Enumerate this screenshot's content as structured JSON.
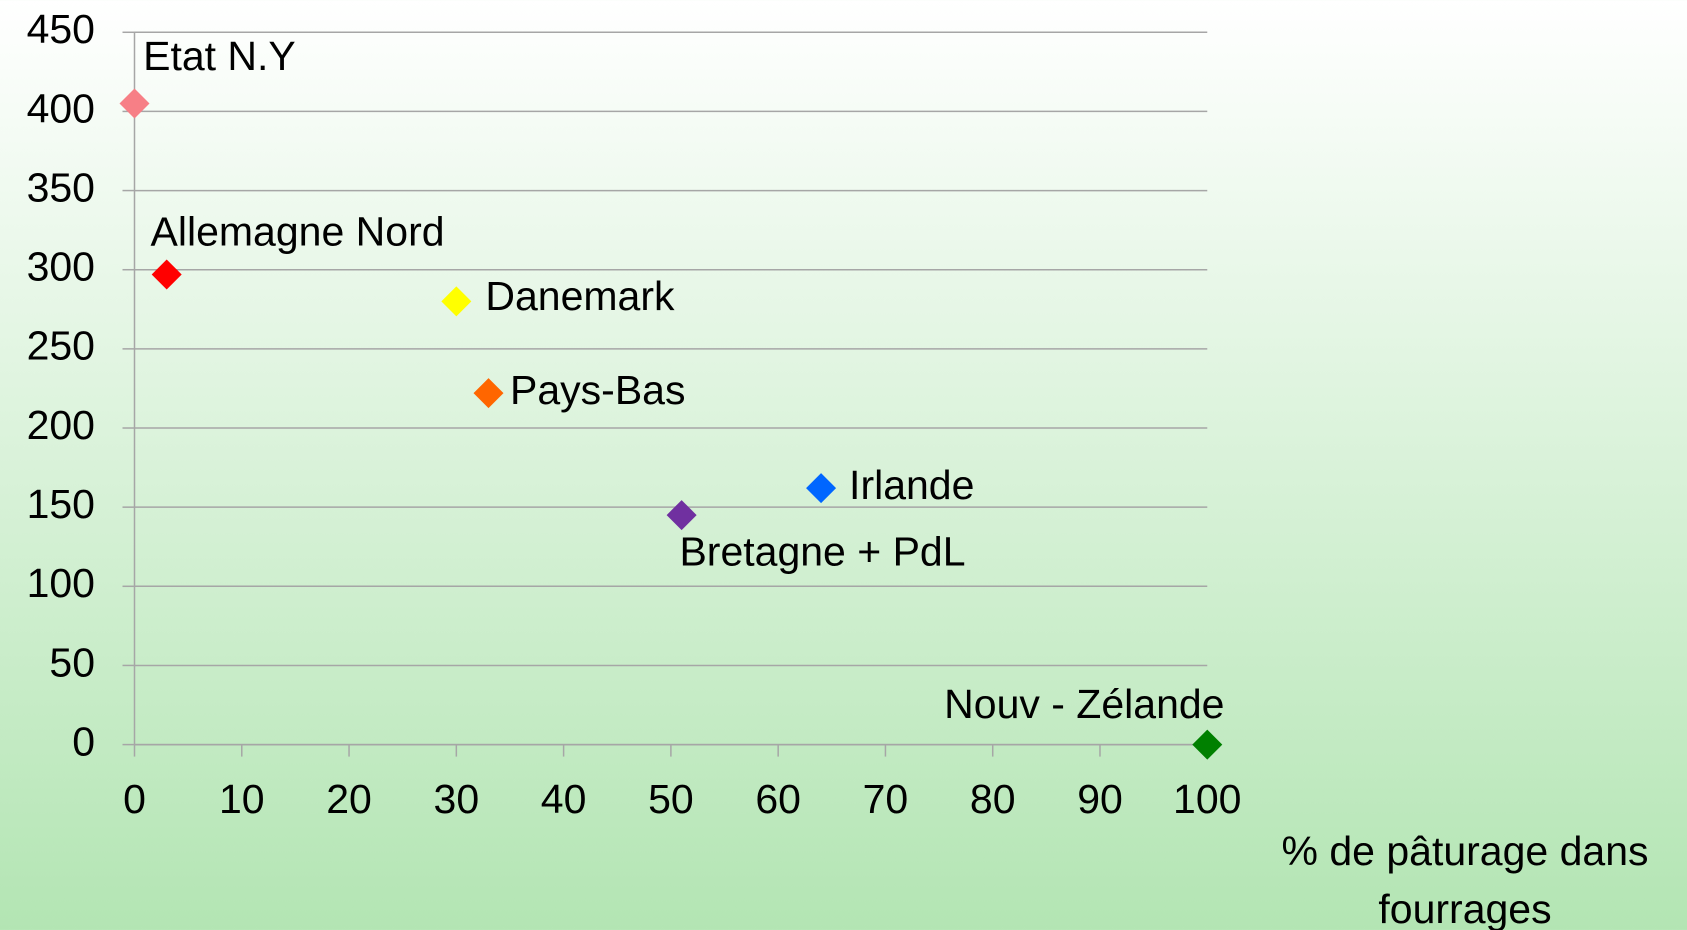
{
  "chart_data": {
    "type": "scatter",
    "xlabel": "% de pâturage dans fourrages",
    "xlim": [
      0,
      100
    ],
    "xticks": [
      0,
      10,
      20,
      30,
      40,
      50,
      60,
      70,
      80,
      90,
      100
    ],
    "ylim": [
      0,
      450
    ],
    "yticks": [
      0,
      50,
      100,
      150,
      200,
      250,
      300,
      350,
      400,
      450
    ],
    "grid": true,
    "series": [
      {
        "name": "Etat N.Y",
        "color": "#f77f86",
        "x": [
          0
        ],
        "values": [
          405
        ]
      },
      {
        "name": "Allemagne Nord",
        "color": "#ff0000",
        "x": [
          3
        ],
        "values": [
          297
        ]
      },
      {
        "name": "Danemark",
        "color": "#ffff00",
        "x": [
          30
        ],
        "values": [
          280
        ]
      },
      {
        "name": "Pays-Bas",
        "color": "#ff6600",
        "x": [
          33
        ],
        "values": [
          222
        ]
      },
      {
        "name": "Bretagne + PdL",
        "color": "#7030a0",
        "x": [
          51
        ],
        "values": [
          145
        ]
      },
      {
        "name": "Irlande",
        "color": "#0066ff",
        "x": [
          64
        ],
        "values": [
          162
        ]
      },
      {
        "name": "Nouv - Zélande",
        "color": "#008000",
        "x": [
          100
        ],
        "values": [
          0
        ]
      }
    ]
  }
}
